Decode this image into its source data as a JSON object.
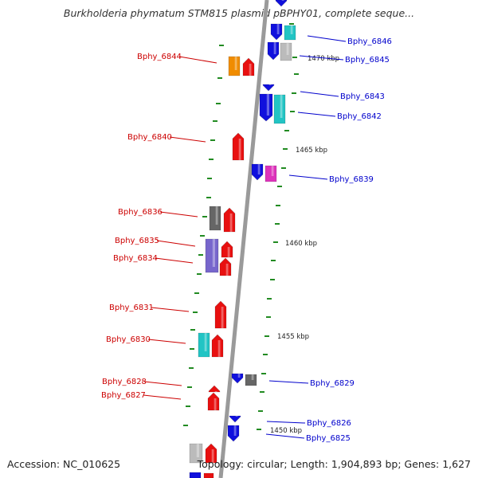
{
  "title": "Burkholderia phymatum STM815 plasmid pBPHY01, complete seque...",
  "footer": {
    "accession": "Accession: NC_010625",
    "summary": "Topology: circular; Length: 1,904,893 bp; Genes: 1,627"
  },
  "colors": {
    "left_label": "#cc0000",
    "right_label": "#0000cc",
    "backbone": "#9a9a9a",
    "tick": "#228b22"
  },
  "ticks": [
    "1470 kbp",
    "1465 kbp",
    "1460 kbp",
    "1455 kbp",
    "1450 kbp"
  ],
  "genes_left": [
    "Bphy_6844",
    "Bphy_6840",
    "Bphy_6836",
    "Bphy_6835",
    "Bphy_6834",
    "Bphy_6831",
    "Bphy_6830",
    "Bphy_6828",
    "Bphy_6827"
  ],
  "genes_right": [
    "Bphy_6846",
    "Bphy_6845",
    "Bphy_6843",
    "Bphy_6842",
    "Bphy_6839",
    "Bphy_6829",
    "Bphy_6826",
    "Bphy_6825"
  ]
}
